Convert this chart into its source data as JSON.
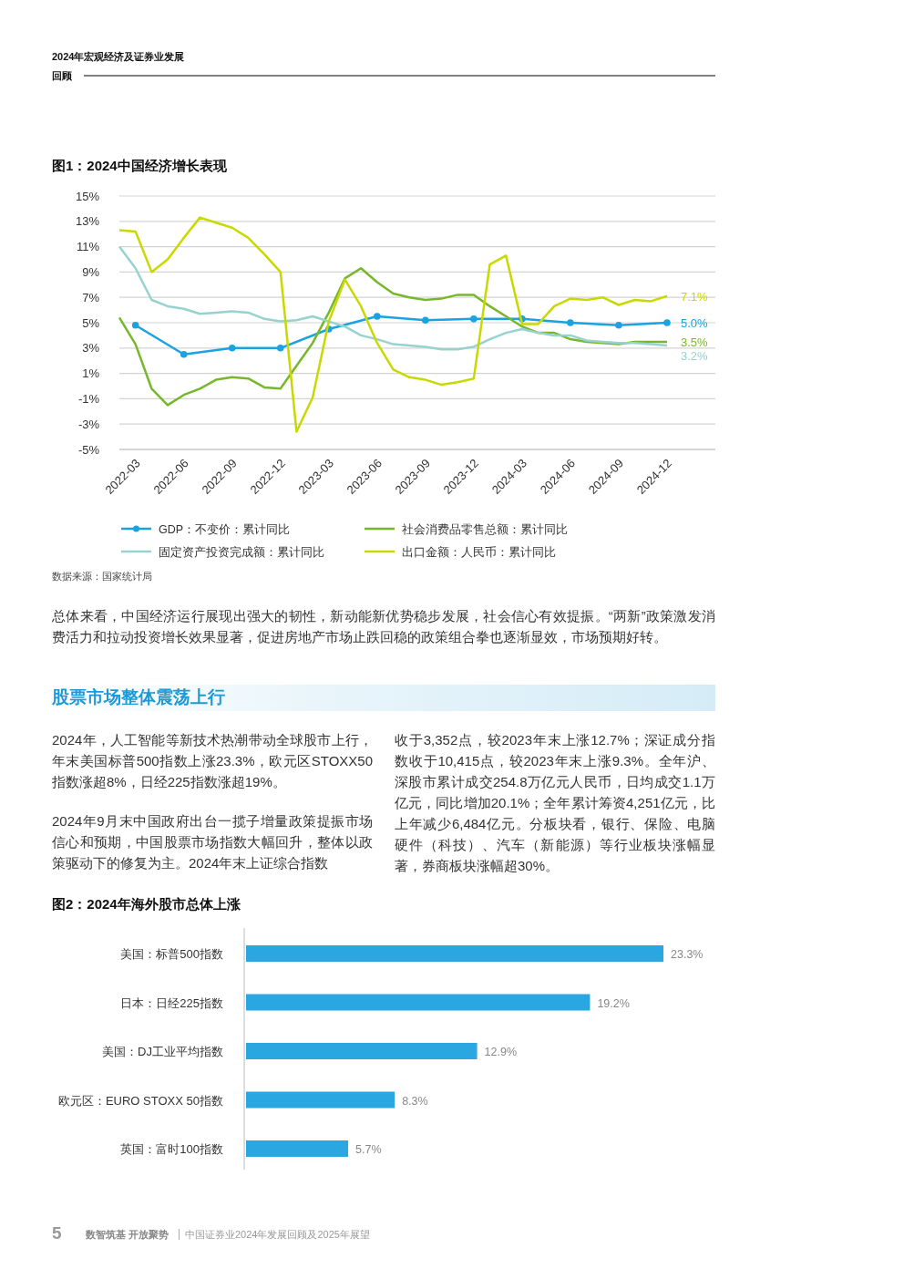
{
  "chart_data": [
    {
      "type": "line",
      "title": "图1：2024中国经济增长表现",
      "annotations": [
        "2024年宏观经济及证券业发展",
        "回顾",
        "数据来源：国家统计局",
        "总体来看，中国经济运行展现出强大的韧性，新动能新优势稳步发展，社会信心有效提振。“两新”政策激发消费活力和拉动投资增长效果显著，促进房地产市场止跌回稳的政策组合拳也逐渐显效，市场预期好转。"
      ],
      "xlim": [
        "2022-02",
        "2025-03"
      ],
      "xticks": [
        "2022-03",
        "2022-06",
        "2022-09",
        "2022-12",
        "2023-03",
        "2023-06",
        "2023-09",
        "2023-12",
        "2024-03",
        "2024-06",
        "2024-09",
        "2024-12"
      ],
      "ylim": [
        -5,
        15
      ],
      "yticks": [
        {
          "value": -5,
          "label": "-5%"
        },
        {
          "value": -3,
          "label": "-3%"
        },
        {
          "value": -1,
          "label": "-1%"
        },
        {
          "value": 1,
          "label": "1%"
        },
        {
          "value": 3,
          "label": "3%"
        },
        {
          "value": 5,
          "label": "5%"
        },
        {
          "value": 7,
          "label": "7%"
        },
        {
          "value": 9,
          "label": "9%"
        },
        {
          "value": 11,
          "label": "11%"
        },
        {
          "value": 13,
          "label": "13%"
        },
        {
          "value": 15,
          "label": "15%"
        }
      ],
      "grid": "y",
      "legend": "bottom",
      "series": [
        {
          "name": "GDP：不变价：累计同比",
          "color": "#1aa3e0",
          "marker": "circle",
          "x": [
            "2022-03",
            "2022-06",
            "2022-09",
            "2022-12",
            "2023-03",
            "2023-06",
            "2023-09",
            "2023-12",
            "2024-03",
            "2024-06",
            "2024-09",
            "2024-12"
          ],
          "values": [
            4.8,
            2.5,
            3.0,
            3.0,
            4.5,
            5.5,
            5.2,
            5.3,
            5.3,
            5.0,
            4.8,
            5.0
          ],
          "value_labels": [
            null,
            null,
            null,
            null,
            null,
            null,
            null,
            null,
            null,
            null,
            null,
            "5.0%"
          ]
        },
        {
          "name": "社会消费品零售总额：累计同比",
          "color": "#77b82a",
          "marker": "none",
          "x": [
            "2022-02",
            "2022-03",
            "2022-04",
            "2022-05",
            "2022-06",
            "2022-07",
            "2022-08",
            "2022-09",
            "2022-10",
            "2022-11",
            "2022-12",
            "2023-01",
            "2023-02",
            "2023-03",
            "2023-04",
            "2023-05",
            "2023-06",
            "2023-07",
            "2023-08",
            "2023-09",
            "2023-10",
            "2023-11",
            "2023-12",
            "2024-01",
            "2024-02",
            "2024-03",
            "2024-04",
            "2024-05",
            "2024-06",
            "2024-07",
            "2024-08",
            "2024-09",
            "2024-10",
            "2024-11",
            "2024-12"
          ],
          "values": [
            5.4,
            3.3,
            -0.2,
            -1.5,
            -0.7,
            -0.2,
            0.5,
            0.7,
            0.6,
            -0.1,
            -0.2,
            1.6,
            3.4,
            5.8,
            8.5,
            9.3,
            8.2,
            7.3,
            7.0,
            6.8,
            6.9,
            7.2,
            7.2,
            6.3,
            5.5,
            4.7,
            4.2,
            4.2,
            3.7,
            3.5,
            3.4,
            3.3,
            3.5,
            3.5,
            3.5
          ],
          "value_labels": [
            null,
            null,
            null,
            null,
            null,
            null,
            null,
            null,
            null,
            null,
            null,
            null,
            null,
            null,
            null,
            null,
            null,
            null,
            null,
            null,
            null,
            null,
            null,
            null,
            null,
            null,
            null,
            null,
            null,
            null,
            null,
            null,
            null,
            null,
            "3.5%"
          ]
        },
        {
          "name": "固定资产投资完成额：累计同比",
          "color": "#96d3cf",
          "marker": "none",
          "x": [
            "2022-02",
            "2022-03",
            "2022-04",
            "2022-05",
            "2022-06",
            "2022-07",
            "2022-08",
            "2022-09",
            "2022-10",
            "2022-11",
            "2022-12",
            "2023-01",
            "2023-02",
            "2023-03",
            "2023-04",
            "2023-05",
            "2023-06",
            "2023-07",
            "2023-08",
            "2023-09",
            "2023-10",
            "2023-11",
            "2023-12",
            "2024-01",
            "2024-02",
            "2024-03",
            "2024-04",
            "2024-05",
            "2024-06",
            "2024-07",
            "2024-08",
            "2024-09",
            "2024-10",
            "2024-11",
            "2024-12"
          ],
          "values": [
            11.0,
            9.3,
            6.8,
            6.3,
            6.1,
            5.7,
            5.8,
            5.9,
            5.8,
            5.3,
            5.1,
            5.2,
            5.5,
            5.1,
            4.7,
            4.0,
            3.7,
            3.3,
            3.2,
            3.1,
            2.9,
            2.9,
            3.1,
            3.7,
            4.2,
            4.5,
            4.2,
            4.0,
            4.0,
            3.6,
            3.5,
            3.4,
            3.4,
            3.3,
            3.2
          ],
          "value_labels": [
            null,
            null,
            null,
            null,
            null,
            null,
            null,
            null,
            null,
            null,
            null,
            null,
            null,
            null,
            null,
            null,
            null,
            null,
            null,
            null,
            null,
            null,
            null,
            null,
            null,
            null,
            null,
            null,
            null,
            null,
            null,
            null,
            null,
            null,
            "3.2%"
          ]
        },
        {
          "name": "出口金额：人民币：累计同比",
          "color": "#c8d900",
          "marker": "none",
          "x": [
            "2022-02",
            "2022-03",
            "2022-04",
            "2022-05",
            "2022-06",
            "2022-07",
            "2022-08",
            "2022-09",
            "2022-10",
            "2022-11",
            "2022-12",
            "2023-01",
            "2023-02",
            "2023-03",
            "2023-04",
            "2023-05",
            "2023-06",
            "2023-07",
            "2023-08",
            "2023-09",
            "2023-10",
            "2023-11",
            "2023-12",
            "2024-01",
            "2024-02",
            "2024-03",
            "2024-04",
            "2024-05",
            "2024-06",
            "2024-07",
            "2024-08",
            "2024-09",
            "2024-10",
            "2024-11",
            "2024-12"
          ],
          "values": [
            12.3,
            12.2,
            9.0,
            10.0,
            11.7,
            13.3,
            12.9,
            12.5,
            11.7,
            10.4,
            9.0,
            -3.6,
            -0.9,
            5.1,
            8.4,
            6.3,
            3.4,
            1.3,
            0.7,
            0.5,
            0.1,
            0.3,
            0.6,
            9.6,
            10.3,
            4.9,
            4.9,
            6.3,
            6.9,
            6.8,
            7.0,
            6.4,
            6.8,
            6.7,
            7.1
          ],
          "value_labels": [
            null,
            null,
            null,
            null,
            null,
            null,
            null,
            null,
            null,
            null,
            null,
            null,
            null,
            null,
            null,
            null,
            null,
            null,
            null,
            null,
            null,
            null,
            null,
            null,
            null,
            null,
            null,
            null,
            null,
            null,
            null,
            null,
            null,
            null,
            "7.1%"
          ]
        }
      ]
    },
    {
      "type": "bar",
      "orientation": "horizontal",
      "title": "图2：2024年海外股市总体上涨",
      "annotations": [
        "股票市场整体震荡上行",
        "2024年，人工智能等新技术热潮带动全球股市上行，年末美国标普500指数上涨23.3%，欧元区STOXX50指数涨超8%，日经225指数涨超19%。",
        "2024年9月末中国政府出台一揽子增量政策提振市场信心和预期，中国股票市场指数大幅回升，整体以政策驱动下的修复为主。2024年末上证综合指数",
        "收于3,352点，较2023年末上涨12.7%；深证成分指数收于10,415点，较2023年末上涨9.3%。全年沪、深股市累计成交254.8万亿元人民币，日均成交1.1万亿元，同比增加20.1%；全年累计筹资4,251亿元，比上年减少6,484亿元。分板块看，银行、保险、电脑硬件（科技）、汽车（新能源）等行业板块涨幅显著，券商板块涨幅超30%。",
        "5",
        "数智筑基 开放聚势",
        "中国证券业2024年发展回顾及2025年展望"
      ],
      "categories": [
        "美国：标普500指数",
        "日本：日经225指数",
        "美国：DJ工业平均指数",
        "欧元区：EURO STOXX 50指数",
        "英国：富时100指数"
      ],
      "values": [
        23.3,
        19.2,
        12.9,
        8.3,
        5.7
      ],
      "color": "#2aa7e1",
      "data_labels": true,
      "value_labels": [
        "23.3%",
        "19.2%",
        "12.9%",
        "8.3%",
        "5.7%"
      ]
    }
  ]
}
